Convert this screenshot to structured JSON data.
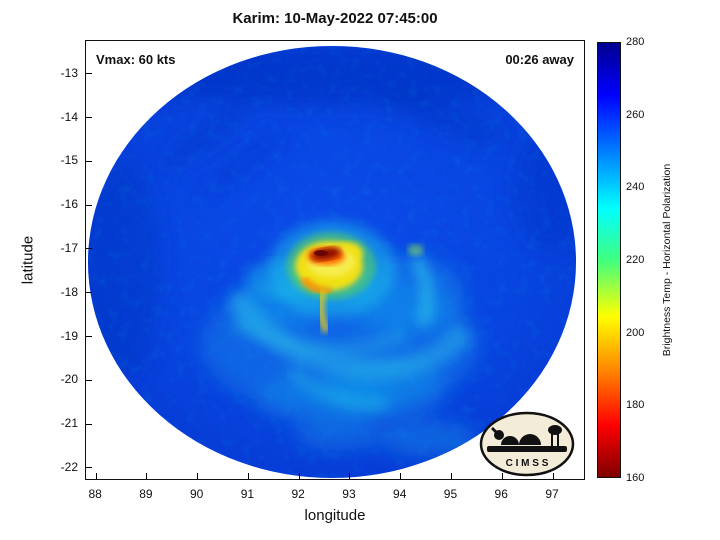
{
  "logo": {
    "text": "C I M S S"
  },
  "chart_data": {
    "type": "heatmap",
    "title": "Karim: 10-May-2022 07:45:00",
    "xlabel": "longitude",
    "ylabel": "latitude",
    "xlim": [
      87.8,
      97.65
    ],
    "ylim": [
      -22.3,
      -12.25
    ],
    "x_ticks": [
      88,
      89,
      90,
      91,
      92,
      93,
      94,
      95,
      96,
      97
    ],
    "y_ticks": [
      -13,
      -14,
      -15,
      -16,
      -17,
      -18,
      -19,
      -20,
      -21,
      -22
    ],
    "grid": false,
    "annotations": [
      {
        "text": "Vmax: 60 kts",
        "position": "top-left"
      },
      {
        "text": "00:26 away",
        "position": "top-right"
      }
    ],
    "colorbar": {
      "label": "Brightness Temp - Horizontal Polarization",
      "min": 160,
      "max": 280,
      "ticks": [
        280,
        260,
        240,
        220,
        200,
        180,
        160
      ],
      "colormap": "jet",
      "orientation": "vertical",
      "high_value_color": "dark blue",
      "low_value_color": "dark red"
    },
    "description": "Microwave brightness temperature (horizontal polarization) satellite swath of Tropical Cyclone Karim; circular disk of data, mostly warm blue background (~255-265 K) with cold convective eye region near 92.6E, -17.3S",
    "storm": {
      "name": "Karim",
      "datetime": "10-May-2022 07:45:00",
      "vmax_kts": 60,
      "eye_lon": 92.6,
      "eye_lat": -17.3,
      "background_temp_K": 258,
      "eye_min_temp_K": 165,
      "cold_ring_temp_K": 205
    },
    "swath": {
      "shape": "circular disk",
      "center_lon": 92.7,
      "center_lat": -17.3,
      "radius_deg": 4.9
    },
    "palette": {
      "background_ocean": "#0a45e0",
      "cold_cloud_cyan": "#22c4e6",
      "convective_green": "#5cd455",
      "eye_ring_yellow": "#f2e41e",
      "eye_orange": "#ff8a00",
      "eye_core_red": "#8d0b06",
      "colorbar_top": "#00008f",
      "colorbar_bottom": "#7f0000"
    }
  }
}
